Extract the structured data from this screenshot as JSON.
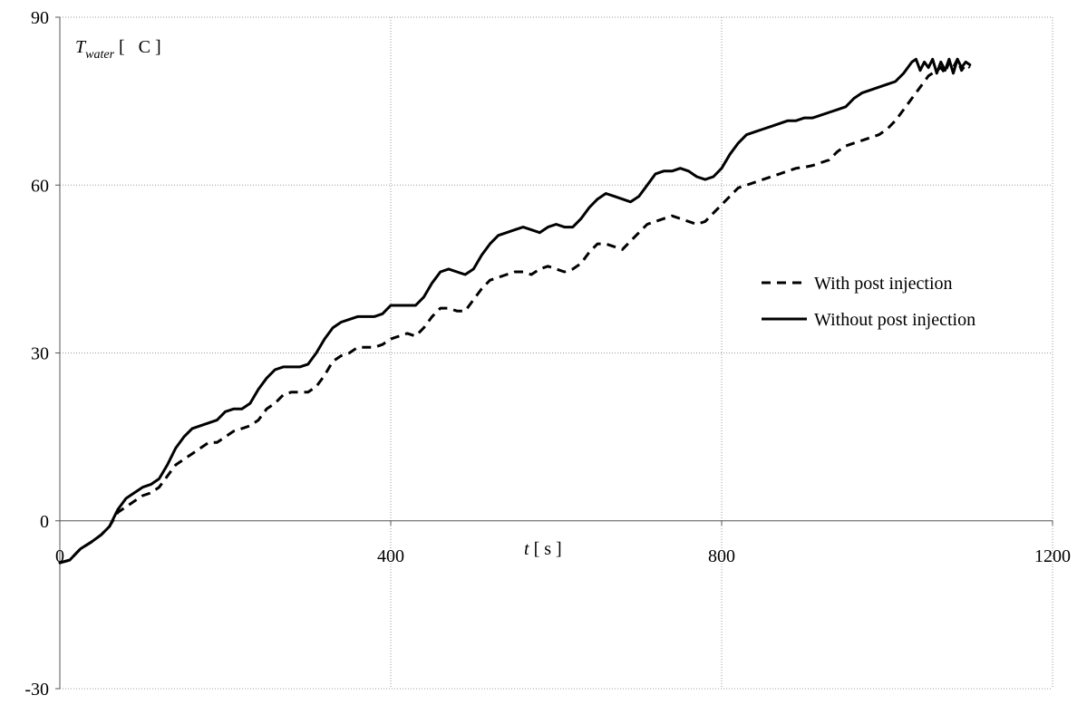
{
  "chart_data": {
    "type": "line",
    "ylabel": {
      "main": "T",
      "sub": "water",
      "unit_open": " [   C ]"
    },
    "xlabel": "t [ s ]",
    "xlim": [
      0,
      1200
    ],
    "ylim": [
      -30,
      90
    ],
    "x_ticks": [
      0,
      400,
      800,
      1200
    ],
    "y_ticks": [
      -30,
      0,
      30,
      60,
      90
    ],
    "x_tick_labels": [
      "0",
      "400",
      "800",
      "1200"
    ],
    "y_tick_labels": [
      "-30",
      "0",
      "30",
      "60",
      "90"
    ],
    "grid": true,
    "legend_position": "right",
    "series": [
      {
        "name": "With post injection",
        "style": "dashed",
        "color": "#000000",
        "points": [
          [
            0,
            -7.5
          ],
          [
            12,
            -7
          ],
          [
            25,
            -5
          ],
          [
            38,
            -3.8
          ],
          [
            50,
            -2.5
          ],
          [
            60,
            -1
          ],
          [
            70,
            1.5
          ],
          [
            80,
            2.5
          ],
          [
            90,
            3.5
          ],
          [
            100,
            4.5
          ],
          [
            110,
            5
          ],
          [
            120,
            6
          ],
          [
            130,
            8
          ],
          [
            140,
            10
          ],
          [
            150,
            11
          ],
          [
            160,
            12
          ],
          [
            170,
            13
          ],
          [
            180,
            14
          ],
          [
            190,
            14
          ],
          [
            200,
            15
          ],
          [
            210,
            16
          ],
          [
            220,
            16.5
          ],
          [
            230,
            17
          ],
          [
            240,
            18
          ],
          [
            250,
            20
          ],
          [
            260,
            21
          ],
          [
            270,
            22.5
          ],
          [
            280,
            23
          ],
          [
            290,
            23
          ],
          [
            300,
            23
          ],
          [
            310,
            24
          ],
          [
            320,
            26
          ],
          [
            330,
            28.5
          ],
          [
            340,
            29.5
          ],
          [
            350,
            30
          ],
          [
            360,
            31
          ],
          [
            370,
            31
          ],
          [
            380,
            31
          ],
          [
            390,
            31.5
          ],
          [
            400,
            32.5
          ],
          [
            410,
            33
          ],
          [
            420,
            33.5
          ],
          [
            430,
            33
          ],
          [
            440,
            34.5
          ],
          [
            450,
            36.5
          ],
          [
            460,
            38
          ],
          [
            470,
            38
          ],
          [
            480,
            37.5
          ],
          [
            490,
            37.5
          ],
          [
            500,
            39.5
          ],
          [
            510,
            41.5
          ],
          [
            520,
            43
          ],
          [
            530,
            43.5
          ],
          [
            540,
            44
          ],
          [
            550,
            44.5
          ],
          [
            560,
            44.5
          ],
          [
            570,
            44
          ],
          [
            580,
            45
          ],
          [
            590,
            45.5
          ],
          [
            600,
            45
          ],
          [
            610,
            44.5
          ],
          [
            620,
            45
          ],
          [
            630,
            46
          ],
          [
            640,
            48
          ],
          [
            650,
            49.5
          ],
          [
            660,
            49.5
          ],
          [
            670,
            49
          ],
          [
            680,
            48.5
          ],
          [
            690,
            50
          ],
          [
            700,
            51.5
          ],
          [
            710,
            53
          ],
          [
            720,
            53.5
          ],
          [
            730,
            54
          ],
          [
            740,
            54.5
          ],
          [
            750,
            54
          ],
          [
            760,
            53.5
          ],
          [
            770,
            53
          ],
          [
            780,
            53.5
          ],
          [
            790,
            55
          ],
          [
            800,
            56.5
          ],
          [
            810,
            58
          ],
          [
            820,
            59.5
          ],
          [
            830,
            60
          ],
          [
            840,
            60.5
          ],
          [
            850,
            61
          ],
          [
            860,
            61.5
          ],
          [
            870,
            62
          ],
          [
            880,
            62.5
          ],
          [
            890,
            63
          ],
          [
            900,
            63.2
          ],
          [
            910,
            63.5
          ],
          [
            920,
            64
          ],
          [
            930,
            64.5
          ],
          [
            940,
            66
          ],
          [
            950,
            67
          ],
          [
            960,
            67.5
          ],
          [
            970,
            68
          ],
          [
            980,
            68.5
          ],
          [
            990,
            69
          ],
          [
            1000,
            70
          ],
          [
            1010,
            71.5
          ],
          [
            1020,
            73.5
          ],
          [
            1030,
            75.5
          ],
          [
            1040,
            77.5
          ],
          [
            1050,
            79.5
          ],
          [
            1060,
            80.5
          ],
          [
            1065,
            81
          ],
          [
            1070,
            80
          ],
          [
            1075,
            82
          ],
          [
            1080,
            81
          ],
          [
            1085,
            82.5
          ],
          [
            1090,
            80.5
          ],
          [
            1095,
            81.5
          ],
          [
            1100,
            81
          ]
        ]
      },
      {
        "name": "Without post injection",
        "style": "solid",
        "color": "#000000",
        "points": [
          [
            0,
            -7.5
          ],
          [
            12,
            -7
          ],
          [
            25,
            -5
          ],
          [
            38,
            -3.8
          ],
          [
            50,
            -2.5
          ],
          [
            60,
            -1
          ],
          [
            70,
            2
          ],
          [
            80,
            4
          ],
          [
            90,
            5
          ],
          [
            100,
            6
          ],
          [
            110,
            6.5
          ],
          [
            120,
            7.5
          ],
          [
            130,
            10
          ],
          [
            140,
            13
          ],
          [
            150,
            15
          ],
          [
            160,
            16.5
          ],
          [
            170,
            17
          ],
          [
            180,
            17.5
          ],
          [
            190,
            18
          ],
          [
            200,
            19.5
          ],
          [
            210,
            20
          ],
          [
            220,
            20
          ],
          [
            230,
            21
          ],
          [
            240,
            23.5
          ],
          [
            250,
            25.5
          ],
          [
            260,
            27
          ],
          [
            270,
            27.5
          ],
          [
            280,
            27.5
          ],
          [
            290,
            27.5
          ],
          [
            300,
            28
          ],
          [
            310,
            30
          ],
          [
            320,
            32.5
          ],
          [
            330,
            34.5
          ],
          [
            340,
            35.5
          ],
          [
            350,
            36
          ],
          [
            360,
            36.5
          ],
          [
            370,
            36.5
          ],
          [
            380,
            36.5
          ],
          [
            390,
            37
          ],
          [
            400,
            38.5
          ],
          [
            410,
            38.5
          ],
          [
            420,
            38.5
          ],
          [
            430,
            38.5
          ],
          [
            440,
            40
          ],
          [
            450,
            42.5
          ],
          [
            460,
            44.5
          ],
          [
            470,
            45
          ],
          [
            480,
            44.5
          ],
          [
            490,
            44
          ],
          [
            500,
            45
          ],
          [
            510,
            47.5
          ],
          [
            520,
            49.5
          ],
          [
            530,
            51
          ],
          [
            540,
            51.5
          ],
          [
            550,
            52
          ],
          [
            560,
            52.5
          ],
          [
            570,
            52
          ],
          [
            580,
            51.5
          ],
          [
            590,
            52.5
          ],
          [
            600,
            53
          ],
          [
            610,
            52.5
          ],
          [
            620,
            52.5
          ],
          [
            630,
            54
          ],
          [
            640,
            56
          ],
          [
            650,
            57.5
          ],
          [
            660,
            58.5
          ],
          [
            670,
            58
          ],
          [
            680,
            57.5
          ],
          [
            690,
            57
          ],
          [
            700,
            58
          ],
          [
            710,
            60
          ],
          [
            720,
            62
          ],
          [
            730,
            62.5
          ],
          [
            740,
            62.5
          ],
          [
            750,
            63
          ],
          [
            760,
            62.5
          ],
          [
            770,
            61.5
          ],
          [
            780,
            61
          ],
          [
            790,
            61.5
          ],
          [
            800,
            63
          ],
          [
            810,
            65.5
          ],
          [
            820,
            67.5
          ],
          [
            830,
            69
          ],
          [
            840,
            69.5
          ],
          [
            850,
            70
          ],
          [
            860,
            70.5
          ],
          [
            870,
            71
          ],
          [
            880,
            71.5
          ],
          [
            890,
            71.5
          ],
          [
            900,
            72
          ],
          [
            910,
            72
          ],
          [
            920,
            72.5
          ],
          [
            930,
            73
          ],
          [
            940,
            73.5
          ],
          [
            950,
            74
          ],
          [
            960,
            75.5
          ],
          [
            970,
            76.5
          ],
          [
            980,
            77
          ],
          [
            990,
            77.5
          ],
          [
            1000,
            78
          ],
          [
            1010,
            78.5
          ],
          [
            1020,
            80
          ],
          [
            1030,
            82
          ],
          [
            1035,
            82.5
          ],
          [
            1040,
            80.5
          ],
          [
            1045,
            82
          ],
          [
            1050,
            81
          ],
          [
            1055,
            82.5
          ],
          [
            1060,
            80
          ],
          [
            1065,
            82
          ],
          [
            1070,
            80.5
          ],
          [
            1075,
            82.5
          ],
          [
            1080,
            80
          ],
          [
            1085,
            82.5
          ],
          [
            1090,
            81
          ],
          [
            1095,
            82
          ],
          [
            1100,
            81.5
          ]
        ]
      }
    ]
  }
}
